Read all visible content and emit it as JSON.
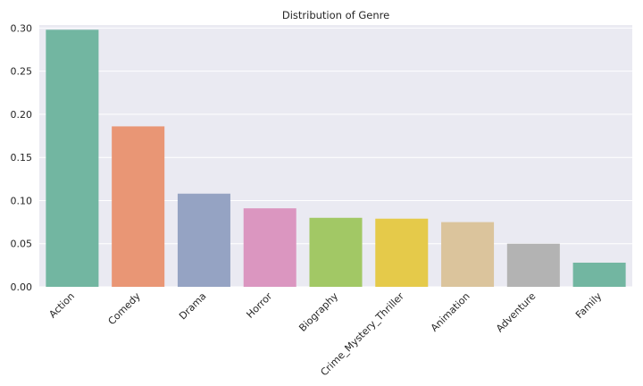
{
  "chart_data": {
    "type": "bar",
    "title": "Distribution of Genre",
    "xlabel": "",
    "ylabel": "",
    "categories": [
      "Action",
      "Comedy",
      "Drama",
      "Horror",
      "Biography",
      "Crime_Mystery_Thriller",
      "Animation",
      "Adventure",
      "Family"
    ],
    "values": [
      0.298,
      0.186,
      0.108,
      0.091,
      0.08,
      0.079,
      0.075,
      0.05,
      0.028
    ],
    "colors": [
      "#72b6a1",
      "#e99675",
      "#95a3c3",
      "#db96c0",
      "#a2c865",
      "#e5ca4a",
      "#dbc49c",
      "#b3b3b3",
      "#72b6a1"
    ],
    "ylim": [
      0,
      0.3
    ],
    "yticks": [
      0.0,
      0.05,
      0.1,
      0.15,
      0.2,
      0.25,
      0.3
    ],
    "ytick_labels": [
      "0.00",
      "0.05",
      "0.10",
      "0.15",
      "0.20",
      "0.25",
      "0.30"
    ],
    "grid": true,
    "background": "#eaeaf2"
  }
}
